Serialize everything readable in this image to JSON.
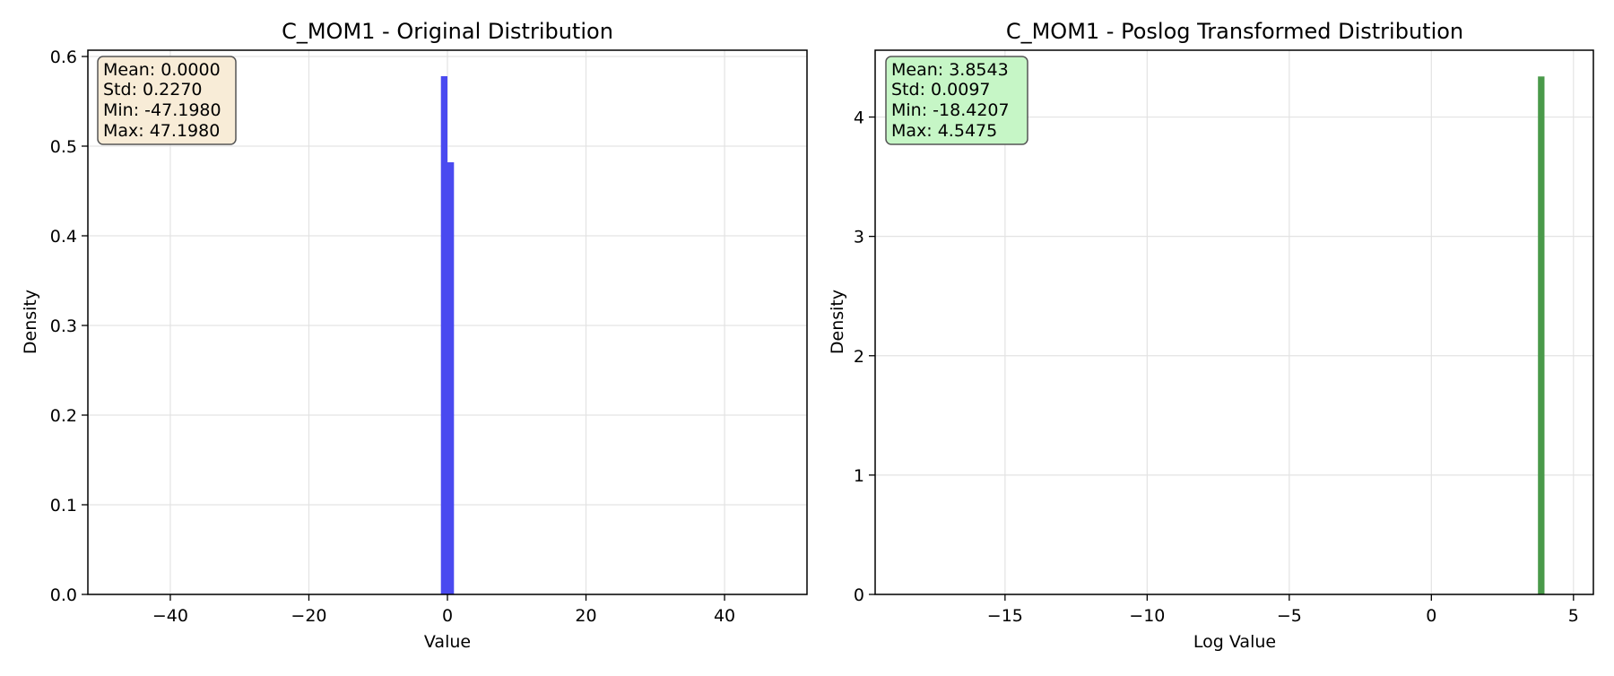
{
  "charts": [
    {
      "title": "C_MOM1 - Original Distribution",
      "xlabel": "Value",
      "ylabel": "Density",
      "xticks": [
        "−40",
        "−20",
        "0",
        "20",
        "40"
      ],
      "yticks": [
        "0.0",
        "0.1",
        "0.2",
        "0.3",
        "0.4",
        "0.5",
        "0.6"
      ],
      "stats": [
        "Mean: 0.0000",
        "Std: 0.2270",
        "Min: -47.1980",
        "Max: 47.1980"
      ]
    },
    {
      "title": "C_MOM1 - Poslog Transformed Distribution",
      "xlabel": "Log Value",
      "ylabel": "Density",
      "xticks": [
        "−15",
        "−10",
        "−5",
        "0",
        "5"
      ],
      "yticks": [
        "0",
        "1",
        "2",
        "3",
        "4"
      ],
      "stats": [
        "Mean: 3.8543",
        "Std: 0.0097",
        "Min: -18.4207",
        "Max: 4.5475"
      ]
    }
  ],
  "chart_data": [
    {
      "type": "bar",
      "title": "C_MOM1 - Original Distribution",
      "xlabel": "Value",
      "ylabel": "Density",
      "xlim": [
        -51.9,
        51.9
      ],
      "ylim": [
        0,
        0.607
      ],
      "xticks": [
        -40,
        -20,
        0,
        20,
        40
      ],
      "yticks": [
        0,
        0.1,
        0.2,
        0.3,
        0.4,
        0.5,
        0.6
      ],
      "grid": true,
      "bar_color": "#4a4af0",
      "stats_box_color": "#f8ecd7",
      "bins": [
        {
          "x0": -0.944,
          "x1": 0.0,
          "density": 0.578
        },
        {
          "x0": 0.0,
          "x1": 0.944,
          "density": 0.482
        }
      ]
    },
    {
      "type": "bar",
      "title": "C_MOM1 - Poslog Transformed Distribution",
      "xlabel": "Log Value",
      "ylabel": "Density",
      "xlim": [
        -19.57,
        5.7
      ],
      "ylim": [
        0,
        4.56
      ],
      "xticks": [
        -15,
        -10,
        -5,
        0,
        5
      ],
      "yticks": [
        0,
        1,
        2,
        3,
        4
      ],
      "grid": true,
      "bar_color": "#4a9a4a",
      "stats_box_color": "#c6f6c6",
      "bins": [
        {
          "x0": 3.75,
          "x1": 3.98,
          "density": 4.34
        }
      ]
    }
  ]
}
